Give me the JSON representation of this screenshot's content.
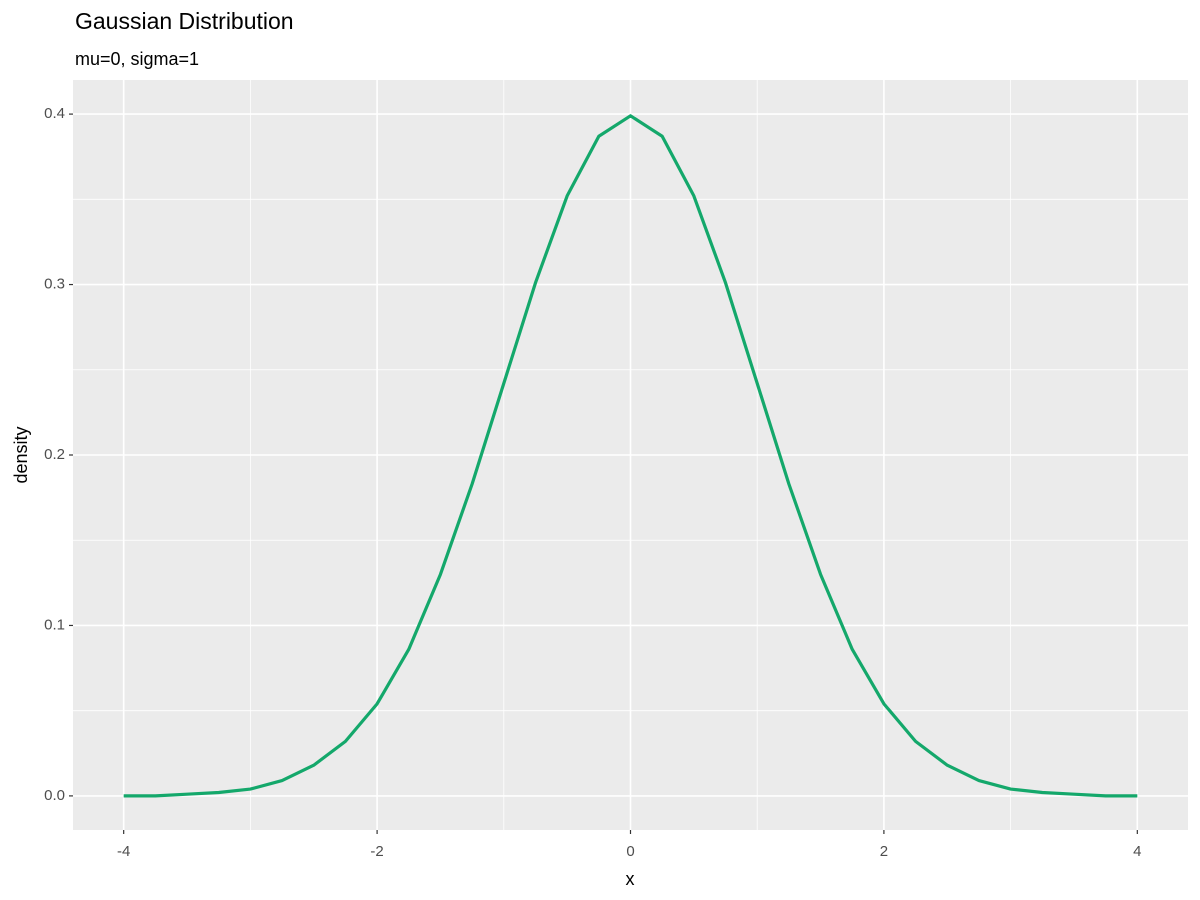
{
  "chart_data": {
    "type": "line",
    "title": "Gaussian Distribution",
    "subtitle": "mu=0, sigma=1",
    "x_label": "x",
    "y_label": "density",
    "x": [
      -4,
      -3.75,
      -3.5,
      -3.25,
      -3,
      -2.75,
      -2.5,
      -2.25,
      -2,
      -1.75,
      -1.5,
      -1.25,
      -1,
      -0.75,
      -0.5,
      -0.25,
      0,
      0.25,
      0.5,
      0.75,
      1,
      1.25,
      1.5,
      1.75,
      2,
      2.25,
      2.5,
      2.75,
      3,
      3.25,
      3.5,
      3.75,
      4
    ],
    "series": [
      {
        "name": "density",
        "color": "#14a86b",
        "values": [
          0.0,
          0.0,
          0.001,
          0.002,
          0.004,
          0.009,
          0.018,
          0.032,
          0.054,
          0.086,
          0.13,
          0.183,
          0.242,
          0.301,
          0.352,
          0.387,
          0.399,
          0.387,
          0.352,
          0.301,
          0.242,
          0.183,
          0.13,
          0.086,
          0.054,
          0.032,
          0.018,
          0.009,
          0.004,
          0.002,
          0.001,
          0.0,
          0.0
        ]
      }
    ],
    "xlim": [
      -4.4,
      4.4
    ],
    "xticks": [
      -4,
      -2,
      0,
      2,
      4
    ],
    "ylim": [
      -0.02,
      0.42
    ],
    "yticks": [
      {
        "value": 0,
        "label": "0.0"
      },
      0.1,
      0.2,
      0.3,
      0.4
    ],
    "grid": true
  }
}
